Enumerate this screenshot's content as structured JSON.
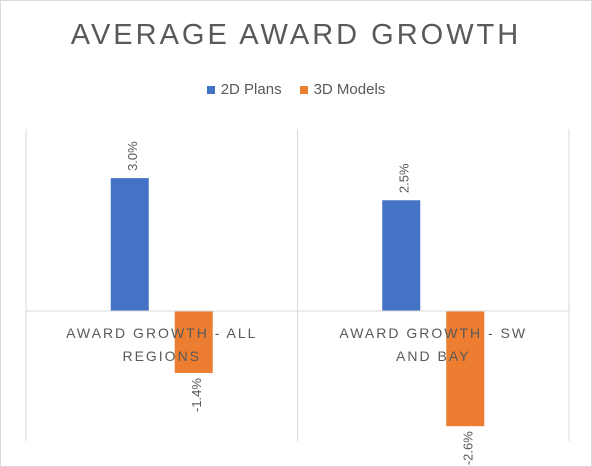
{
  "chart_data": {
    "type": "bar",
    "title": "AVERAGE AWARD GROWTH",
    "categories": [
      "AWARD GROWTH - ALL REGIONS",
      "AWARD GROWTH - SW AND BAY"
    ],
    "series": [
      {
        "name": "2D Plans",
        "values": [
          3.0,
          2.5
        ],
        "labels": [
          "3.0%",
          "2.5%"
        ],
        "color": "#4472C4"
      },
      {
        "name": "3D Models",
        "values": [
          -1.4,
          -2.6
        ],
        "labels": [
          "-1.4%",
          "-2.6%"
        ],
        "color": "#ED7D31"
      }
    ],
    "ylim": [
      -3,
      4
    ],
    "grid": false,
    "legend_position": "top"
  }
}
